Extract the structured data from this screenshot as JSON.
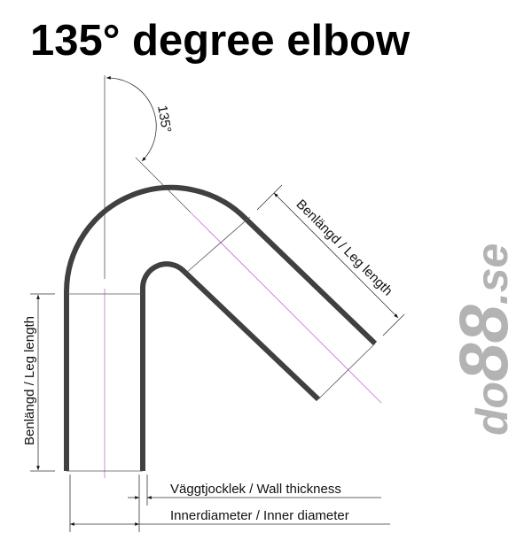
{
  "title": "135° degree elbow",
  "angle_label": "135°",
  "labels": {
    "leg_length_left": "Benlängd / Leg length",
    "leg_length_diagonal": "Benlängd / Leg length",
    "wall_thickness": "Väggtjocklek / Wall thickness",
    "inner_diameter": "Innerdiameter / Inner diameter"
  },
  "logo": {
    "text_main": "do",
    "text_big": "88",
    "text_suffix": ".se"
  },
  "colors": {
    "pipe": "#404040",
    "centerline": "#c070d0",
    "dimension": "#333333",
    "logo": "#b3b3b3"
  }
}
